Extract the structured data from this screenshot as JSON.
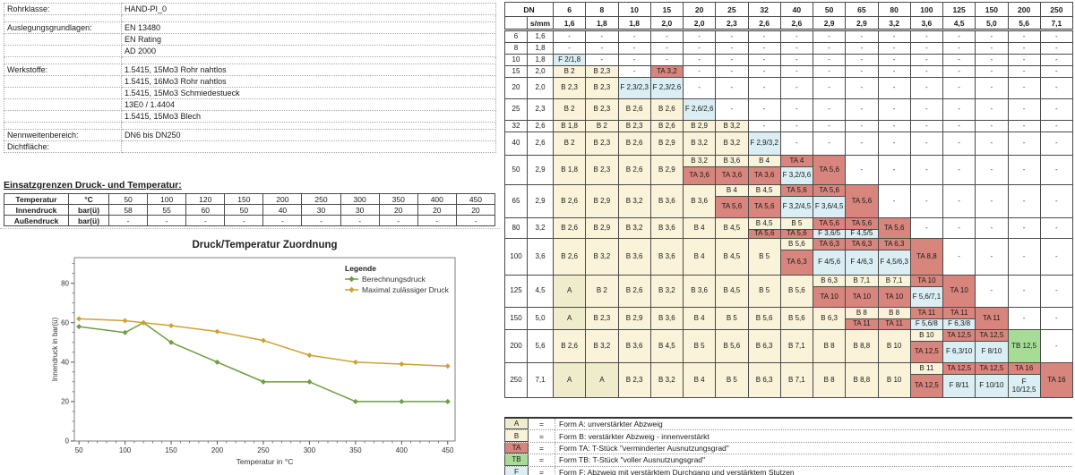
{
  "info": {
    "rows": [
      {
        "label": "Rohrklasse:",
        "value": "HAND-PI_0",
        "blank": false
      },
      {
        "label": "",
        "value": "",
        "blank": true
      },
      {
        "label": "Auslegungsgrundlagen:",
        "value": "EN 13480",
        "blank": false
      },
      {
        "label": "",
        "value": "EN Rating",
        "blank": false
      },
      {
        "label": "",
        "value": "AD 2000",
        "blank": false
      },
      {
        "label": "",
        "value": "",
        "blank": true
      },
      {
        "label": "Werkstoffe:",
        "value": "1.5415, 15Mo3 Rohr nahtlos",
        "blank": false
      },
      {
        "label": "",
        "value": "1.5415, 16Mo3 Rohr nahtlos",
        "blank": false
      },
      {
        "label": "",
        "value": "1.5415, 15Mo3 Schmiedestueck",
        "blank": false
      },
      {
        "label": "",
        "value": "13E0 / 1.4404",
        "blank": false
      },
      {
        "label": "",
        "value": "1.5415, 15Mo3 Blech",
        "blank": false
      },
      {
        "label": "",
        "value": "",
        "blank": true
      },
      {
        "label": "Nennweitenbereich:",
        "value": "DN6 bis DN250",
        "blank": false
      },
      {
        "label": "Dichtfläche:",
        "value": "",
        "blank": false
      }
    ]
  },
  "limits": {
    "title": "Einsatzgrenzen Druck- und Temperatur:",
    "rows": [
      {
        "label": "Temperatur",
        "unit": "°C",
        "values": [
          "50",
          "100",
          "120",
          "150",
          "200",
          "250",
          "300",
          "350",
          "400",
          "450"
        ]
      },
      {
        "label": "Innendruck",
        "unit": "bar(ü)",
        "values": [
          "58",
          "55",
          "60",
          "50",
          "40",
          "30",
          "30",
          "20",
          "20",
          "20"
        ]
      },
      {
        "label": "Außendruck",
        "unit": "bar(ü)",
        "values": [
          "-",
          "-",
          "-",
          "-",
          "-",
          "-",
          "-",
          "-",
          "-",
          "-"
        ]
      }
    ]
  },
  "chart_data": {
    "type": "line",
    "title": "Druck/Temperatur Zuordnung",
    "xlabel": "Temperatur in °C",
    "ylabel": "Innendruck in bar(ü)",
    "xlim": [
      45,
      458
    ],
    "ylim": [
      0,
      93
    ],
    "xticks": [
      50,
      100,
      150,
      200,
      250,
      300,
      350,
      400,
      450
    ],
    "xminor_step": 10,
    "yticks": [
      0,
      20,
      40,
      60,
      80
    ],
    "yminor_step": 5,
    "grid": false,
    "legend_title": "Legende",
    "legend_position": "top-right",
    "x": [
      50,
      100,
      120,
      150,
      200,
      250,
      300,
      350,
      400,
      450
    ],
    "series": [
      {
        "name": "Berechnungsdruck",
        "color": "#6d9e3f",
        "values": [
          58,
          55,
          60,
          50,
          40,
          30,
          30,
          20,
          20,
          20
        ]
      },
      {
        "name": "Maximal zulässiger Druck",
        "color": "#cfa133",
        "values": [
          62,
          61,
          60,
          58.5,
          55.5,
          51,
          43.5,
          40,
          39,
          38
        ]
      }
    ]
  },
  "matrix": {
    "corner": "DN",
    "sub": "s/mm",
    "columns": [
      "6",
      "8",
      "10",
      "15",
      "20",
      "25",
      "32",
      "40",
      "50",
      "65",
      "80",
      "100",
      "125",
      "150",
      "200",
      "250"
    ],
    "col_s": [
      "1,6",
      "1,8",
      "1,8",
      "2,0",
      "2,0",
      "2,3",
      "2,6",
      "2,6",
      "2,9",
      "2,9",
      "3,2",
      "3,6",
      "4,5",
      "5,0",
      "5,6",
      "7,1"
    ],
    "rows": [
      {
        "dn": "6",
        "s": "1,6",
        "cells": [
          "-",
          "-",
          "-",
          "-",
          "-",
          "-",
          "-",
          "-",
          "-",
          "-",
          "-",
          "-",
          "-",
          "-",
          "-",
          "-"
        ]
      },
      {
        "dn": "8",
        "s": "1,8",
        "cells": [
          "-",
          "-",
          "-",
          "-",
          "-",
          "-",
          "-",
          "-",
          "-",
          "-",
          "-",
          "-",
          "-",
          "-",
          "-",
          "-"
        ]
      },
      {
        "dn": "10",
        "s": "1,8",
        "cells": [
          "F 2/1,8",
          "-",
          "-",
          "-",
          "-",
          "-",
          "-",
          "-",
          "-",
          "-",
          "-",
          "-",
          "-",
          "-",
          "-",
          "-"
        ]
      },
      {
        "dn": "15",
        "s": "2,0",
        "cells": [
          "B 2",
          "B 2,3",
          "-",
          "TA 3,2",
          "-",
          "-",
          "-",
          "-",
          "-",
          "-",
          "-",
          "-",
          "-",
          "-",
          "-",
          "-"
        ]
      },
      {
        "dn": "20",
        "s": "2,0",
        "cells": [
          "B 2,3",
          "B 2,3",
          "F 2,3/2,3",
          "F 2,3/2,6",
          "-",
          "-",
          "-",
          "-",
          "-",
          "-",
          "-",
          "-",
          "-",
          "-",
          "-",
          "-"
        ]
      },
      {
        "dn": "25",
        "s": "2,3",
        "cells": [
          "B 2",
          "B 2,3",
          "B 2,6",
          "B 2,6",
          "F 2,6/2,6",
          "-",
          "-",
          "-",
          "-",
          "-",
          "-",
          "-",
          "-",
          "-",
          "-",
          "-"
        ]
      },
      {
        "dn": "32",
        "s": "2,6",
        "cells": [
          "B 1,8",
          "B 2",
          "B 2,3",
          "B 2,6",
          "B 2,9",
          "B 3,2",
          "-",
          "-",
          "-",
          "-",
          "-",
          "-",
          "-",
          "-",
          "-",
          "-"
        ]
      },
      {
        "dn": "40",
        "s": "2,6",
        "cells": [
          "B 2",
          "B 2,3",
          "B 2,6",
          "B 2,9",
          "B 3,2",
          "B 3,2",
          "F 2,9/3,2",
          "-",
          "-",
          "-",
          "-",
          "-",
          "-",
          "-",
          "-",
          "-"
        ]
      },
      {
        "dn": "50",
        "s": "2,9",
        "cells": [
          "B 1,8",
          "B 2,3",
          "B 2,6",
          "B 2,9",
          [
            "B 3,2",
            "TA 3,6"
          ],
          [
            "B 3,6",
            "TA 3,6"
          ],
          [
            "B 4",
            "TA 3,6"
          ],
          [
            "TA 4",
            "F 3,2/3,6"
          ],
          "TA 5,6",
          "-",
          "-",
          "-",
          "-",
          "-",
          "-",
          "-"
        ]
      },
      {
        "dn": "65",
        "s": "2,9",
        "cells": [
          "B 2,6",
          "B 2,9",
          "B 3,2",
          "B 3,6",
          "B 3,6",
          [
            "B 4",
            "TA 5,6"
          ],
          [
            "B 4,5",
            "TA 5,6"
          ],
          [
            "TA 5,6",
            "F 3,2/4,5"
          ],
          [
            "TA 5,6",
            "F 3,6/4,5"
          ],
          "TA 5,6",
          "-",
          "-",
          "-",
          "-",
          "-",
          "-"
        ]
      },
      {
        "dn": "80",
        "s": "3,2",
        "cells": [
          "B 2,6",
          "B 2,9",
          "B 3,2",
          "B 3,6",
          "B 4",
          "B 4,5",
          [
            "B 4,5",
            "TA 5,6"
          ],
          [
            "B 5",
            "TA 5,6"
          ],
          [
            "TA 5,6",
            "F 3,6/5"
          ],
          [
            "TA 5,6",
            "F 4,5/5"
          ],
          "TA 5,6",
          "-",
          "-",
          "-",
          "-",
          "-"
        ]
      },
      {
        "dn": "100",
        "s": "3,6",
        "cells": [
          "B 2,6",
          "B 3,2",
          "B 3,6",
          "B 3,6",
          "B 4",
          "B 4,5",
          "B 5",
          [
            "B 5,6",
            "TA 6,3"
          ],
          [
            "TA 6,3",
            "F 4/5,6"
          ],
          [
            "TA 6,3",
            "F 4/6,3"
          ],
          [
            "TA 6,3",
            "F 4,5/6,3"
          ],
          "TA 8,8",
          "-",
          "-",
          "-",
          "-"
        ]
      },
      {
        "dn": "125",
        "s": "4,5",
        "cells": [
          "A",
          "B 2",
          "B 2,6",
          "B 3,2",
          "B 3,6",
          "B 4,5",
          "B 5",
          "B 5,6",
          [
            "B 6,3",
            "TA 10"
          ],
          [
            "B 7,1",
            "TA 10"
          ],
          [
            "B 7,1",
            "TA 10"
          ],
          [
            "TA 10",
            "F 5,6/7,1"
          ],
          "TA 10",
          "-",
          "-",
          "-"
        ]
      },
      {
        "dn": "150",
        "s": "5,0",
        "cells": [
          "A",
          "B 2,3",
          "B 2,9",
          "B 3,6",
          "B 4",
          "B 5",
          "B 5,6",
          "B 5,6",
          "B 6,3",
          [
            "B 8",
            "TA 11"
          ],
          [
            "B 8",
            "TA 11"
          ],
          [
            "TA 11",
            "F 5,6/8"
          ],
          [
            "TA 11",
            "F 6,3/8"
          ],
          "TA 11",
          "-",
          "-"
        ]
      },
      {
        "dn": "200",
        "s": "5,6",
        "cells": [
          "B 2,6",
          "B 3,2",
          "B 3,6",
          "B 4,5",
          "B 5",
          "B 5,6",
          "B 6,3",
          "B 7,1",
          "B 8",
          "B 8,8",
          "B 10",
          [
            "B 10",
            "TA 12,5"
          ],
          [
            "TA 12,5",
            "F 6,3/10"
          ],
          [
            "TA 12,5",
            "F 8/10"
          ],
          "TB 12,5",
          "-"
        ]
      },
      {
        "dn": "250",
        "s": "7,1",
        "cells": [
          "A",
          "A",
          "B 2,3",
          "B 3,2",
          "B 4",
          "B 5",
          "B 6,3",
          "B 7,1",
          "B 8",
          "B 8,8",
          "B 10",
          [
            "B 11",
            "TA 12,5"
          ],
          [
            "TA 12,5",
            "F 8/11"
          ],
          [
            "TA 12,5",
            "F 10/10"
          ],
          [
            "TA 16",
            "F 10/12,5"
          ],
          "TA 16"
        ]
      }
    ]
  },
  "form_legend": {
    "items": [
      {
        "key": "A",
        "eq": "=",
        "text": "Form A: unverstärkter Abzweig"
      },
      {
        "key": "B",
        "eq": "=",
        "text": "Form B: verstärkter Abzweig - innenverstärkt"
      },
      {
        "key": "TA",
        "eq": "=",
        "text": "Form TA: T-Stück \"verminderter Ausnutzungsgrad\""
      },
      {
        "key": "TB",
        "eq": "=",
        "text": "Form TB: T-Stück \"voller Ausnutzungsgrad\""
      },
      {
        "key": "F",
        "eq": "=",
        "text": "Form F: Abzweig mit verstärktem Durchgang und verstärktem Stutzen"
      }
    ]
  },
  "colors": {
    "form_A": "#eeecca",
    "form_B": "#faf3d9",
    "form_TA": "#d8857d",
    "form_TB": "#a6dc96",
    "form_F": "#daeef3",
    "series_green": "#6d9e3f",
    "series_orange": "#cfa133"
  }
}
